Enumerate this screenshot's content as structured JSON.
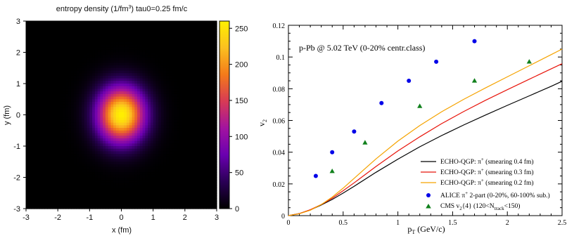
{
  "chart_data": [
    {
      "type": "heatmap",
      "title_prefix": "entropy density (1/fm",
      "title_sup": "3",
      "title_suffix": ")  tau0=0.25 fm/c",
      "xlabel": "x (fm)",
      "ylabel": "y (fm)",
      "xlim": [
        -3,
        3
      ],
      "ylim": [
        -3,
        3
      ],
      "xticks": [
        "-3",
        "-2",
        "-1",
        "0",
        "1",
        "2",
        "3"
      ],
      "yticks": [
        "-3",
        "-2",
        "-1",
        "0",
        "1",
        "2",
        "3"
      ],
      "colorbar": {
        "range": [
          0,
          260
        ],
        "ticks": [
          "0",
          "50",
          "100",
          "150",
          "200",
          "250"
        ],
        "colormap": [
          "#000000",
          "#2a0055",
          "#6a00b0",
          "#a213a0",
          "#d73a55",
          "#f47a1a",
          "#fbc020",
          "#fff000"
        ]
      },
      "distribution": {
        "peak": 260,
        "center": [
          0,
          0
        ],
        "sigma_x": 0.52,
        "sigma_y": 0.62
      }
    },
    {
      "type": "line",
      "annotation": "p-Pb @ 5.02 TeV (0-20% centr.class)",
      "xlabel": "p",
      "xlabel_sub": "T",
      "xlabel_suffix": " (GeV/c)",
      "ylabel": "v",
      "ylabel_sub": "2",
      "xlim": [
        0,
        2.5
      ],
      "ylim": [
        0,
        0.12
      ],
      "xticks": [
        "0",
        "0.5",
        "1",
        "1.5",
        "2",
        "2.5"
      ],
      "yticks": [
        "0",
        "0.02",
        "0.04",
        "0.06",
        "0.08",
        "0.1",
        "0.12"
      ],
      "series": [
        {
          "kind": "line",
          "color": "#000000",
          "legend": {
            "pre": "ECHO-QGP: π",
            "sup": "+",
            "post": " (smearing 0.4 fm)"
          },
          "x": [
            0,
            0.1,
            0.2,
            0.3,
            0.4,
            0.5,
            0.6,
            0.8,
            1.0,
            1.2,
            1.4,
            1.6,
            1.8,
            2.0,
            2.2,
            2.4,
            2.5
          ],
          "y": [
            0,
            0.0013,
            0.0036,
            0.0067,
            0.0102,
            0.0142,
            0.0185,
            0.0273,
            0.0356,
            0.0434,
            0.0505,
            0.0571,
            0.0634,
            0.0695,
            0.0755,
            0.0815,
            0.0847
          ]
        },
        {
          "kind": "line",
          "color": "#e8140a",
          "legend": {
            "pre": "ECHO-QGP: π",
            "sup": "+",
            "post": " (smearing 0.3 fm)"
          },
          "x": [
            0,
            0.1,
            0.2,
            0.3,
            0.4,
            0.5,
            0.6,
            0.8,
            1.0,
            1.2,
            1.4,
            1.6,
            1.8,
            2.0,
            2.2,
            2.4,
            2.5
          ],
          "y": [
            0,
            0.0013,
            0.0037,
            0.007,
            0.011,
            0.0157,
            0.0207,
            0.031,
            0.0408,
            0.0497,
            0.058,
            0.0656,
            0.0727,
            0.0794,
            0.086,
            0.0925,
            0.0958
          ]
        },
        {
          "kind": "line",
          "color": "#f5a300",
          "legend": {
            "pre": "ECHO-QGP: π",
            "sup": "+",
            "post": " (smearing 0.2 fm)"
          },
          "x": [
            0,
            0.1,
            0.2,
            0.3,
            0.4,
            0.5,
            0.6,
            0.8,
            1.0,
            1.2,
            1.4,
            1.6,
            1.8,
            2.0,
            2.2,
            2.4,
            2.5
          ],
          "y": [
            0,
            0.0012,
            0.0034,
            0.007,
            0.0117,
            0.0173,
            0.0235,
            0.0358,
            0.047,
            0.0568,
            0.0655,
            0.0733,
            0.0805,
            0.0875,
            0.0945,
            0.1015,
            0.105
          ]
        },
        {
          "kind": "points",
          "marker": "circle",
          "color": "#0000e8",
          "legend": {
            "pre": "ALICE π",
            "sup": "+",
            "post": " 2-part  (0-20%, 60-100% sub.)"
          },
          "x": [
            0.25,
            0.4,
            0.6,
            0.85,
            1.1,
            1.35,
            1.7
          ],
          "y": [
            0.025,
            0.04,
            0.053,
            0.071,
            0.085,
            0.097,
            0.11
          ]
        },
        {
          "kind": "points",
          "marker": "triangle",
          "color": "#10801c",
          "legend": {
            "pre": "CMS v",
            "sub": "2",
            "mid": "{4} (120<N",
            "sub2": "track",
            "post": "<150)"
          },
          "x": [
            0.4,
            0.7,
            1.2,
            1.7,
            2.2
          ],
          "y": [
            0.028,
            0.046,
            0.069,
            0.085,
            0.097
          ]
        }
      ]
    }
  ]
}
